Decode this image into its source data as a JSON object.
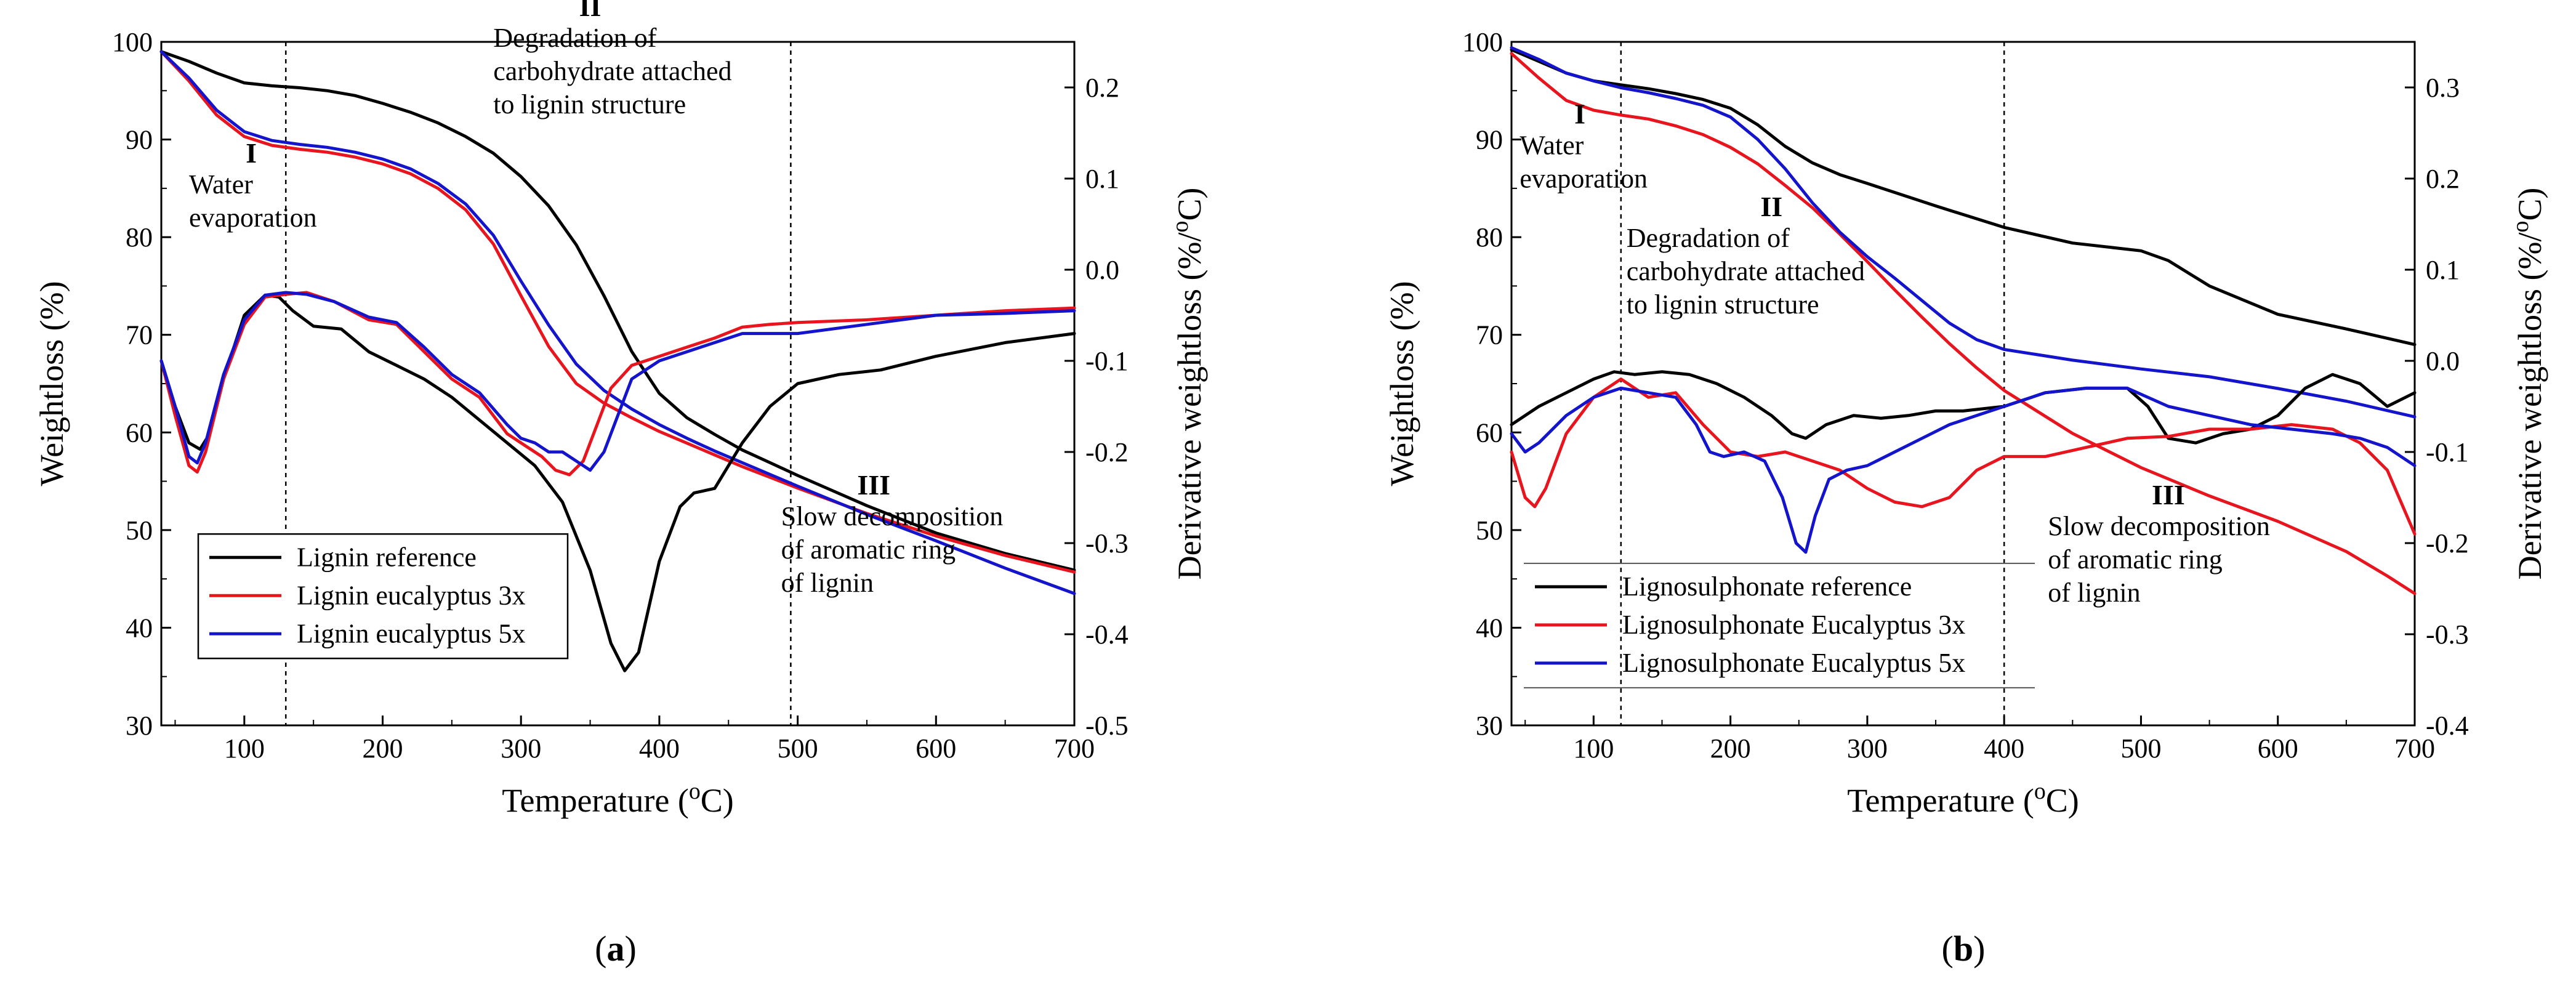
{
  "chart_data": [
    {
      "panel": "a",
      "panel_label": {
        "pre": "(",
        "letter": "a",
        "post": ")"
      },
      "type": "line",
      "xlabel": {
        "pre": "Temperature (",
        "sup": "o",
        "post": "C)"
      },
      "ylabel": "Weightloss (%)",
      "y2label": {
        "pre": "Derivative weightloss (%/",
        "sup": "o",
        "post": "C)"
      },
      "xlim": [
        40,
        700
      ],
      "ylim": [
        30,
        100
      ],
      "y2lim": [
        -0.5,
        0.25
      ],
      "xticks": [
        100,
        200,
        300,
        400,
        500,
        600,
        700
      ],
      "yticks": [
        30,
        40,
        50,
        60,
        70,
        80,
        90,
        100
      ],
      "y2ticks": [
        -0.5,
        -0.4,
        -0.3,
        -0.2,
        -0.1,
        0.0,
        0.1,
        0.2
      ],
      "y2tick_labels": [
        "-0.5",
        "-0.4",
        "-0.3",
        "-0.2",
        "-0.1",
        "0.0",
        "0.1",
        "0.2"
      ],
      "vlines": [
        130,
        495
      ],
      "regions": [
        {
          "roman": "I",
          "lines": [
            "Water",
            "evaporation"
          ],
          "anchor": {
            "x": 105,
            "y": 84.5
          },
          "roman_x": 105,
          "align": "start",
          "text_x": 60
        },
        {
          "roman": "II",
          "lines": [
            "Degradation of",
            "carbohydrate attached",
            "to lignin structure"
          ],
          "anchor": {
            "x": 295,
            "y": 99.5
          },
          "roman_x": 350,
          "align": "start",
          "text_x": 280
        },
        {
          "roman": "III",
          "lines": [
            "Slow decomposition",
            "of aromatic ring",
            "of lignin"
          ],
          "anchor": {
            "x": 560,
            "y": 50.5
          },
          "roman_x": 555,
          "align": "start",
          "text_x": 488
        }
      ],
      "legend": {
        "position": "bottom-left",
        "entries": [
          "Lignin reference",
          "Lignin eucalyptus 3x",
          "Lignin eucalyptus 5x"
        ]
      },
      "series": [
        {
          "name": "Lignin reference",
          "kind": "weightloss",
          "color": "#000000",
          "x": [
            40,
            60,
            80,
            100,
            120,
            140,
            160,
            180,
            200,
            220,
            240,
            260,
            280,
            300,
            320,
            340,
            360,
            380,
            400,
            420,
            440,
            460,
            480,
            500,
            550,
            600,
            650,
            700
          ],
          "y": [
            99,
            98,
            96.8,
            95.8,
            95.5,
            95.3,
            95,
            94.5,
            93.7,
            92.8,
            91.7,
            90.3,
            88.6,
            86.2,
            83.2,
            79.2,
            74,
            68.3,
            64,
            61.5,
            59.8,
            58.2,
            56.9,
            55.6,
            52.5,
            49.7,
            47.6,
            45.9
          ]
        },
        {
          "name": "Lignin eucalyptus 3x",
          "kind": "weightloss",
          "color": "#e8141e",
          "x": [
            40,
            60,
            80,
            100,
            120,
            140,
            160,
            180,
            200,
            220,
            240,
            260,
            280,
            300,
            320,
            340,
            360,
            380,
            400,
            420,
            440,
            460,
            480,
            500,
            550,
            600,
            650,
            700
          ],
          "y": [
            99,
            96,
            92.5,
            90.3,
            89.4,
            89,
            88.7,
            88.2,
            87.5,
            86.5,
            85,
            82.8,
            79.3,
            74,
            68.8,
            65,
            63,
            61.5,
            60.1,
            58.9,
            57.7,
            56.5,
            55.4,
            54.3,
            51.7,
            49.4,
            47.4,
            45.7
          ]
        },
        {
          "name": "Lignin eucalyptus 5x",
          "kind": "weightloss",
          "color": "#1414cc",
          "x": [
            40,
            60,
            80,
            100,
            120,
            140,
            160,
            180,
            200,
            220,
            240,
            260,
            280,
            300,
            320,
            340,
            360,
            380,
            400,
            420,
            440,
            460,
            480,
            500,
            550,
            600,
            650,
            700
          ],
          "y": [
            99,
            96.3,
            93,
            90.8,
            89.9,
            89.5,
            89.2,
            88.7,
            88,
            87,
            85.5,
            83.4,
            80.2,
            75.5,
            71,
            67,
            64.3,
            62.4,
            60.8,
            59.4,
            58.1,
            56.9,
            55.7,
            54.5,
            51.6,
            48.9,
            46.1,
            43.5
          ]
        },
        {
          "name": "Lignin reference",
          "kind": "derivative",
          "color": "#000000",
          "x": [
            40,
            50,
            60,
            68,
            75,
            85,
            100,
            115,
            125,
            135,
            150,
            170,
            190,
            210,
            230,
            250,
            270,
            290,
            310,
            330,
            350,
            365,
            375,
            385,
            400,
            415,
            425,
            440,
            460,
            480,
            500,
            530,
            560,
            600,
            650,
            700
          ],
          "y": [
            -0.1,
            -0.15,
            -0.19,
            -0.197,
            -0.18,
            -0.12,
            -0.05,
            -0.028,
            -0.03,
            -0.045,
            -0.062,
            -0.065,
            -0.09,
            -0.105,
            -0.12,
            -0.14,
            -0.165,
            -0.19,
            -0.215,
            -0.255,
            -0.33,
            -0.41,
            -0.44,
            -0.42,
            -0.32,
            -0.26,
            -0.245,
            -0.24,
            -0.19,
            -0.15,
            -0.125,
            -0.115,
            -0.11,
            -0.095,
            -0.08,
            -0.07
          ]
        },
        {
          "name": "Lignin eucalyptus 3x",
          "kind": "derivative",
          "color": "#e8141e",
          "x": [
            40,
            50,
            60,
            66,
            72,
            85,
            100,
            115,
            130,
            145,
            165,
            190,
            210,
            230,
            250,
            270,
            290,
            305,
            315,
            325,
            335,
            345,
            355,
            365,
            380,
            400,
            420,
            440,
            460,
            480,
            500,
            550,
            600,
            650,
            700
          ],
          "y": [
            -0.1,
            -0.16,
            -0.215,
            -0.222,
            -0.2,
            -0.12,
            -0.06,
            -0.03,
            -0.027,
            -0.025,
            -0.035,
            -0.055,
            -0.06,
            -0.09,
            -0.12,
            -0.14,
            -0.18,
            -0.195,
            -0.205,
            -0.22,
            -0.225,
            -0.21,
            -0.17,
            -0.13,
            -0.105,
            -0.095,
            -0.085,
            -0.075,
            -0.063,
            -0.06,
            -0.058,
            -0.055,
            -0.05,
            -0.045,
            -0.042
          ]
        },
        {
          "name": "Lignin eucalyptus 5x",
          "kind": "derivative",
          "color": "#1414cc",
          "x": [
            40,
            50,
            60,
            66,
            72,
            85,
            100,
            115,
            130,
            145,
            165,
            190,
            210,
            230,
            250,
            270,
            290,
            300,
            310,
            320,
            330,
            340,
            350,
            360,
            370,
            380,
            400,
            420,
            440,
            460,
            480,
            500,
            550,
            600,
            650,
            700
          ],
          "y": [
            -0.1,
            -0.15,
            -0.205,
            -0.212,
            -0.19,
            -0.115,
            -0.055,
            -0.028,
            -0.025,
            -0.027,
            -0.035,
            -0.052,
            -0.058,
            -0.085,
            -0.115,
            -0.135,
            -0.17,
            -0.185,
            -0.19,
            -0.2,
            -0.2,
            -0.21,
            -0.22,
            -0.2,
            -0.16,
            -0.12,
            -0.1,
            -0.09,
            -0.08,
            -0.07,
            -0.07,
            -0.07,
            -0.06,
            -0.05,
            -0.048,
            -0.045
          ]
        }
      ]
    },
    {
      "panel": "b",
      "panel_label": {
        "pre": "(",
        "letter": "b",
        "post": ")"
      },
      "type": "line",
      "xlabel": {
        "pre": "Temperature (",
        "sup": "o",
        "post": "C)"
      },
      "ylabel": "Weightloss (%)",
      "y2label": {
        "pre": "Derivative weightloss (%/",
        "sup": "o",
        "post": "C)"
      },
      "xlim": [
        40,
        700
      ],
      "ylim": [
        30,
        100
      ],
      "y2lim": [
        -0.4,
        0.35
      ],
      "xticks": [
        100,
        200,
        300,
        400,
        500,
        600,
        700
      ],
      "yticks": [
        30,
        40,
        50,
        60,
        70,
        80,
        90,
        100
      ],
      "y2ticks": [
        -0.4,
        -0.3,
        -0.2,
        -0.1,
        0.0,
        0.1,
        0.2,
        0.3
      ],
      "y2tick_labels": [
        "-0.4",
        "-0.3",
        "-0.2",
        "-0.1",
        "0.0",
        "0.1",
        "0.2",
        "0.3"
      ],
      "vlines": [
        120,
        400
      ],
      "regions": [
        {
          "roman": "I",
          "lines": [
            "Water",
            "evaporation"
          ],
          "anchor": {
            "x": 85,
            "y": 88.5
          },
          "roman_x": 90,
          "align": "start",
          "text_x": 46
        },
        {
          "roman": "II",
          "lines": [
            "Degradation of",
            "carbohydrate attached",
            "to lignin structure"
          ],
          "anchor": {
            "x": 240,
            "y": 79
          },
          "roman_x": 230,
          "align": "start",
          "text_x": 124
        },
        {
          "roman": "III",
          "lines": [
            "Slow decomposition",
            "of aromatic ring",
            "of lignin"
          ],
          "anchor": {
            "x": 550,
            "y": 49.5
          },
          "roman_x": 520,
          "align": "start",
          "text_x": 432
        }
      ],
      "legend": {
        "position": "bottom-left",
        "entries": [
          "Lignosulphonate reference",
          "Lignosulphonate Eucalyptus 3x",
          "Lignosulphonate Eucalyptus 5x"
        ]
      },
      "series": [
        {
          "name": "Lignosulphonate reference",
          "kind": "weightloss",
          "color": "#000000",
          "x": [
            40,
            60,
            80,
            100,
            120,
            140,
            160,
            180,
            200,
            220,
            240,
            260,
            280,
            300,
            350,
            400,
            450,
            500,
            520,
            550,
            600,
            650,
            700
          ],
          "y": [
            99.2,
            98,
            96.8,
            96,
            95.6,
            95.2,
            94.7,
            94.1,
            93.2,
            91.5,
            89.3,
            87.6,
            86.4,
            85.5,
            83.2,
            81,
            79.4,
            78.6,
            77.6,
            75,
            72.1,
            70.6,
            69
          ]
        },
        {
          "name": "Lignosulphonate Eucalyptus 3x",
          "kind": "weightloss",
          "color": "#e8141e",
          "x": [
            40,
            60,
            80,
            100,
            120,
            140,
            160,
            180,
            200,
            220,
            240,
            260,
            280,
            300,
            320,
            340,
            360,
            380,
            400,
            450,
            500,
            550,
            600,
            650,
            680,
            700
          ],
          "y": [
            98.8,
            96.3,
            94,
            93,
            92.5,
            92.1,
            91.4,
            90.5,
            89.2,
            87.5,
            85.3,
            83,
            80.3,
            77.5,
            74.6,
            71.8,
            69.1,
            66.6,
            64.3,
            59.9,
            56.4,
            53.5,
            50.9,
            47.8,
            45.3,
            43.5
          ]
        },
        {
          "name": "Lignosulphonate Eucalyptus 5x",
          "kind": "weightloss",
          "color": "#1414cc",
          "x": [
            40,
            60,
            80,
            100,
            120,
            140,
            160,
            180,
            200,
            220,
            240,
            260,
            280,
            300,
            320,
            340,
            360,
            380,
            400,
            450,
            500,
            550,
            600,
            650,
            700
          ],
          "y": [
            99.4,
            98.2,
            96.8,
            96,
            95.3,
            94.8,
            94.2,
            93.5,
            92.3,
            90,
            87,
            83.5,
            80.5,
            78,
            75.8,
            73.5,
            71.2,
            69.5,
            68.5,
            67.4,
            66.5,
            65.7,
            64.5,
            63.2,
            61.6
          ]
        },
        {
          "name": "Lignosulphonate reference",
          "kind": "derivative",
          "color": "#000000",
          "x": [
            40,
            60,
            80,
            100,
            115,
            130,
            150,
            170,
            190,
            210,
            230,
            245,
            255,
            270,
            290,
            310,
            330,
            350,
            370,
            400,
            430,
            460,
            490,
            505,
            520,
            540,
            560,
            580,
            600,
            620,
            640,
            660,
            680,
            700
          ],
          "y": [
            -0.07,
            -0.05,
            -0.035,
            -0.02,
            -0.012,
            -0.015,
            -0.012,
            -0.015,
            -0.025,
            -0.04,
            -0.06,
            -0.08,
            -0.085,
            -0.07,
            -0.06,
            -0.063,
            -0.06,
            -0.055,
            -0.055,
            -0.05,
            -0.035,
            -0.03,
            -0.03,
            -0.05,
            -0.085,
            -0.09,
            -0.08,
            -0.075,
            -0.06,
            -0.03,
            -0.015,
            -0.025,
            -0.05,
            -0.035
          ]
        },
        {
          "name": "Lignosulphonate Eucalyptus 3x",
          "kind": "derivative",
          "color": "#e8141e",
          "x": [
            40,
            50,
            57,
            65,
            80,
            100,
            120,
            140,
            160,
            180,
            200,
            220,
            240,
            260,
            280,
            300,
            320,
            340,
            360,
            380,
            400,
            430,
            460,
            490,
            520,
            550,
            580,
            610,
            640,
            660,
            680,
            700
          ],
          "y": [
            -0.1,
            -0.15,
            -0.16,
            -0.14,
            -0.08,
            -0.04,
            -0.02,
            -0.04,
            -0.035,
            -0.07,
            -0.1,
            -0.105,
            -0.1,
            -0.11,
            -0.12,
            -0.14,
            -0.155,
            -0.16,
            -0.15,
            -0.12,
            -0.105,
            -0.105,
            -0.095,
            -0.085,
            -0.083,
            -0.075,
            -0.075,
            -0.07,
            -0.075,
            -0.09,
            -0.12,
            -0.19
          ]
        },
        {
          "name": "Lignosulphonate Eucalyptus 5x",
          "kind": "derivative",
          "color": "#1414cc",
          "x": [
            40,
            50,
            60,
            80,
            100,
            120,
            140,
            160,
            175,
            185,
            195,
            210,
            225,
            238,
            248,
            255,
            262,
            272,
            285,
            300,
            320,
            340,
            360,
            380,
            400,
            430,
            460,
            490,
            520,
            550,
            580,
            610,
            640,
            660,
            680,
            700
          ],
          "y": [
            -0.08,
            -0.1,
            -0.09,
            -0.06,
            -0.04,
            -0.03,
            -0.035,
            -0.04,
            -0.07,
            -0.1,
            -0.105,
            -0.1,
            -0.11,
            -0.15,
            -0.2,
            -0.21,
            -0.17,
            -0.13,
            -0.12,
            -0.115,
            -0.1,
            -0.085,
            -0.07,
            -0.06,
            -0.05,
            -0.035,
            -0.03,
            -0.03,
            -0.05,
            -0.06,
            -0.07,
            -0.075,
            -0.08,
            -0.085,
            -0.095,
            -0.115
          ]
        }
      ]
    }
  ]
}
